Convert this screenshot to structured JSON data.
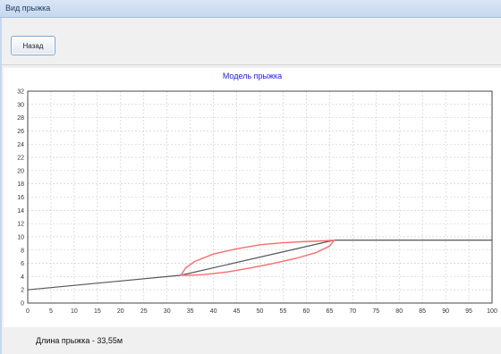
{
  "window": {
    "title": "Вид прыжка"
  },
  "toolbar": {
    "back_label": "Назад"
  },
  "status": {
    "text": "Длина прыжка - 33,55м"
  },
  "colors": {
    "title": "#1a1aff",
    "track": "#555555",
    "flight": "#ff6b6b",
    "grid": "#c8c8c8"
  },
  "chart_data": {
    "type": "line",
    "title": "Модель прыжка",
    "xlabel": "",
    "ylabel": "",
    "xlim": [
      0,
      100
    ],
    "ylim": [
      0,
      32
    ],
    "xticks": [
      0,
      5,
      10,
      15,
      20,
      25,
      30,
      35,
      40,
      45,
      50,
      55,
      60,
      65,
      70,
      75,
      80,
      85,
      90,
      95,
      100
    ],
    "yticks": [
      0,
      2,
      4,
      6,
      8,
      10,
      12,
      14,
      16,
      18,
      20,
      22,
      24,
      26,
      28,
      30,
      32
    ],
    "grid": true,
    "series": [
      {
        "role": "track",
        "color": "#555555",
        "x": [
          0,
          33,
          66,
          100
        ],
        "y": [
          2,
          4.2,
          9.5,
          9.5
        ]
      },
      {
        "role": "flight",
        "color": "#ff6b6b",
        "x": [
          33,
          34,
          36,
          40,
          45,
          50,
          55,
          60,
          64,
          66,
          65,
          62,
          58,
          53,
          48,
          43,
          38,
          35,
          33
        ],
        "y": [
          4.2,
          5.3,
          6.3,
          7.4,
          8.2,
          8.8,
          9.1,
          9.3,
          9.4,
          9.5,
          8.6,
          7.6,
          6.8,
          6.0,
          5.3,
          4.7,
          4.3,
          4.2,
          4.2
        ]
      }
    ]
  }
}
